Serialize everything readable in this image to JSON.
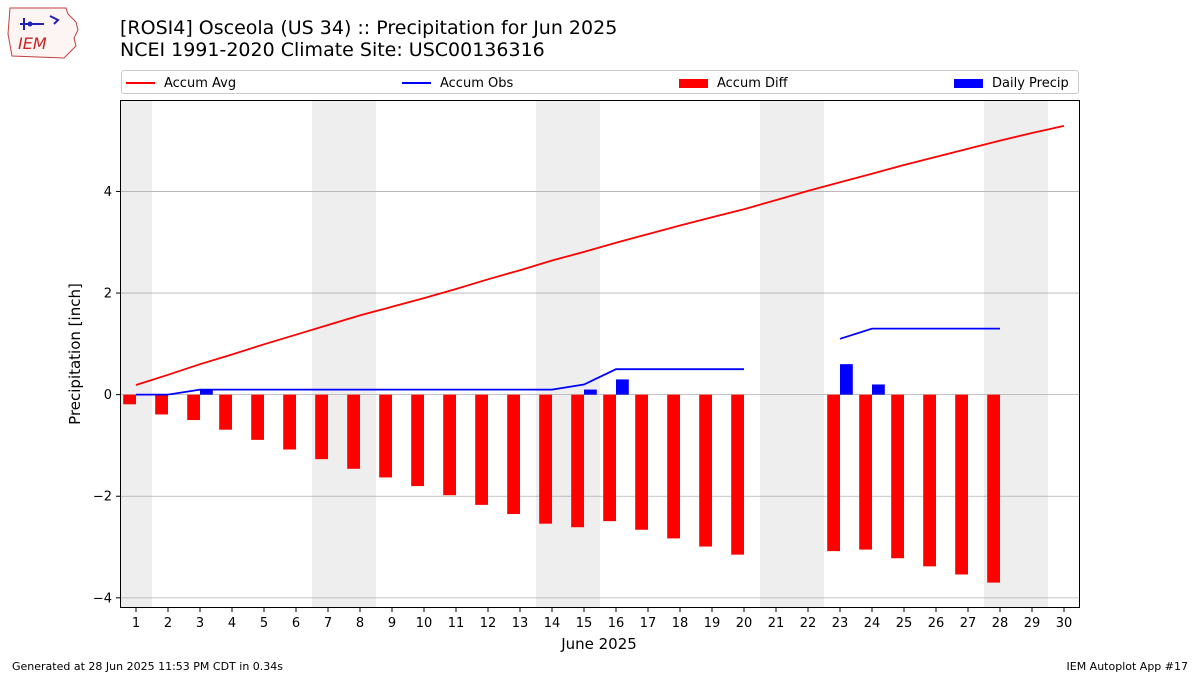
{
  "header": {
    "logo_text": "IEM",
    "title_line1": "[ROSI4] Osceola (US 34) :: Precipitation for Jun 2025",
    "title_line2": "NCEI 1991-2020 Climate Site: USC00136316"
  },
  "legend": {
    "accum_avg": "Accum Avg",
    "accum_obs": "Accum Obs",
    "accum_diff": "Accum Diff",
    "daily_precip": "Daily Precip"
  },
  "colors": {
    "avg": "#ff0000",
    "obs": "#0000ff",
    "diff": "#ff0000",
    "daily": "#0000ff",
    "weekend_shade": "#eeeeee",
    "grid": "#b0b0b0"
  },
  "footer": {
    "left": "Generated at 28 Jun 2025 11:53 PM CDT in 0.34s",
    "right": "IEM Autoplot App #17"
  },
  "chart_data": {
    "type": "bar",
    "title": "[ROSI4] Osceola (US 34) :: Precipitation for Jun 2025",
    "xlabel": "June 2025",
    "ylabel": "Precipitation [inch]",
    "xlim": [
      0.5,
      30.5
    ],
    "ylim": [
      -4.2,
      5.8
    ],
    "x_ticks": [
      1,
      2,
      3,
      4,
      5,
      6,
      7,
      8,
      9,
      10,
      11,
      12,
      13,
      14,
      15,
      16,
      17,
      18,
      19,
      20,
      21,
      22,
      23,
      24,
      25,
      26,
      27,
      28,
      29,
      30
    ],
    "y_ticks": [
      -4,
      -2,
      0,
      2,
      4
    ],
    "y_tick_labels": [
      "−4",
      "−2",
      "0",
      "2",
      "4"
    ],
    "weekend_spans": [
      [
        0.5,
        1.5
      ],
      [
        6.5,
        8.5
      ],
      [
        13.5,
        15.5
      ],
      [
        20.5,
        22.5
      ],
      [
        27.5,
        29.5
      ]
    ],
    "grid": "horizontal",
    "legend_position": "top",
    "series": [
      {
        "name": "Accum Avg",
        "type": "line",
        "x": [
          1,
          2,
          3,
          4,
          5,
          6,
          7,
          8,
          9,
          10,
          11,
          12,
          13,
          14,
          15,
          16,
          17,
          18,
          19,
          20,
          21,
          22,
          23,
          24,
          25,
          26,
          27,
          28,
          29,
          30
        ],
        "values": [
          0.19,
          0.39,
          0.6,
          0.79,
          0.99,
          1.18,
          1.37,
          1.56,
          1.73,
          1.9,
          2.08,
          2.27,
          2.45,
          2.64,
          2.81,
          2.99,
          3.16,
          3.33,
          3.49,
          3.65,
          3.83,
          4.01,
          4.18,
          4.35,
          4.52,
          4.68,
          4.84,
          5.0,
          5.15,
          5.29
        ]
      },
      {
        "name": "Accum Obs",
        "type": "line",
        "x": [
          1,
          2,
          3,
          4,
          5,
          6,
          7,
          8,
          9,
          10,
          11,
          12,
          13,
          14,
          15,
          16,
          17,
          18,
          19,
          20,
          21,
          22,
          23,
          24,
          25,
          26,
          27,
          28
        ],
        "values": [
          0.0,
          0.0,
          0.1,
          0.1,
          0.1,
          0.1,
          0.1,
          0.1,
          0.1,
          0.1,
          0.1,
          0.1,
          0.1,
          0.1,
          0.2,
          0.5,
          0.5,
          0.5,
          0.5,
          0.5,
          null,
          null,
          1.1,
          1.3,
          1.3,
          1.3,
          1.3,
          1.3
        ]
      },
      {
        "name": "Accum Diff",
        "type": "bar",
        "x": [
          1,
          2,
          3,
          4,
          5,
          6,
          7,
          8,
          9,
          10,
          11,
          12,
          13,
          14,
          15,
          16,
          17,
          18,
          19,
          20,
          23,
          24,
          25,
          26,
          27,
          28
        ],
        "values": [
          -0.19,
          -0.39,
          -0.5,
          -0.69,
          -0.89,
          -1.08,
          -1.27,
          -1.46,
          -1.63,
          -1.8,
          -1.98,
          -2.17,
          -2.35,
          -2.54,
          -2.61,
          -2.49,
          -2.66,
          -2.83,
          -2.99,
          -3.15,
          -3.08,
          -3.05,
          -3.22,
          -3.38,
          -3.54,
          -3.7
        ]
      },
      {
        "name": "Daily Precip",
        "type": "bar",
        "x": [
          3,
          15,
          16,
          23,
          24
        ],
        "values": [
          0.1,
          0.1,
          0.3,
          0.6,
          0.2
        ]
      }
    ]
  }
}
